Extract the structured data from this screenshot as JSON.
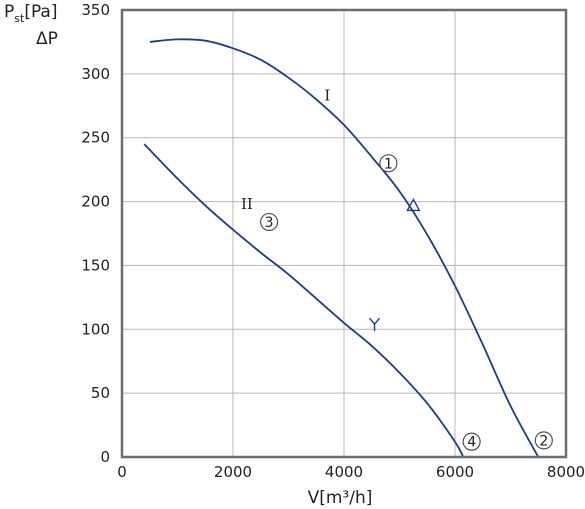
{
  "chart_data": {
    "type": "line",
    "ylabel_main": "P",
    "ylabel_sub": "st",
    "ylabel_unit": "[Pa]",
    "ylabel_line2": "ΔP",
    "xlabel": "V[m³/h]",
    "xlim": [
      0,
      8000
    ],
    "ylim": [
      0,
      350
    ],
    "x_ticks": [
      0,
      2000,
      4000,
      6000,
      8000
    ],
    "y_ticks": [
      0,
      50,
      100,
      150,
      200,
      250,
      300,
      350
    ],
    "grid": true,
    "colors": {
      "curve": "#1f3a8a",
      "grid": "#b8b8b8",
      "frame": "#6e6e6e"
    },
    "series": [
      {
        "name": "I",
        "x": [
          500,
          1000,
          1500,
          2000,
          2500,
          3000,
          3500,
          4000,
          4500,
          5000,
          5500,
          6000,
          6500,
          7000,
          7500
        ],
        "y": [
          325,
          327,
          326,
          320,
          311,
          297,
          280,
          260,
          235,
          208,
          174,
          134,
          88,
          40,
          0
        ]
      },
      {
        "name": "II",
        "x": [
          400,
          1000,
          1500,
          2000,
          2500,
          3000,
          3500,
          4000,
          4500,
          5000,
          5500,
          6000,
          6150
        ],
        "y": [
          245,
          218,
          197,
          178,
          160,
          143,
          124,
          105,
          87,
          66,
          42,
          12,
          0
        ]
      }
    ],
    "annotations": [
      {
        "kind": "roman",
        "text": "I",
        "x": 3700,
        "y": 279
      },
      {
        "kind": "roman",
        "text": "II",
        "x": 2250,
        "y": 194
      },
      {
        "kind": "circled",
        "text": "1",
        "x": 4800,
        "y": 230
      },
      {
        "kind": "circled",
        "text": "2",
        "x": 7600,
        "y": 13
      },
      {
        "kind": "circled",
        "text": "3",
        "x": 2650,
        "y": 184
      },
      {
        "kind": "circled",
        "text": "4",
        "x": 6300,
        "y": 12
      },
      {
        "kind": "triangle-marker",
        "x": 5250,
        "y": 197
      },
      {
        "kind": "y-marker",
        "x": 4550,
        "y": 104
      }
    ]
  }
}
